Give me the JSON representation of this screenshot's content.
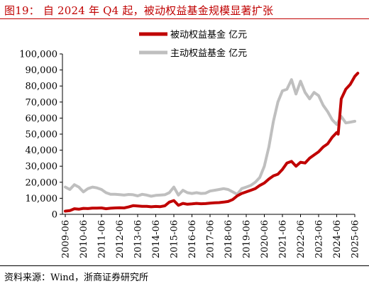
{
  "title": "图19： 自 2024 年 Q4 起，被动权益基金规模显著扩张",
  "source": "资料来源：Wind，浙商证券研究所",
  "colors": {
    "passive": "#c00000",
    "active": "#bfbfbf",
    "title": "#c00000"
  },
  "chart_data": {
    "type": "line",
    "ylim": [
      0,
      100000
    ],
    "y_ticks": [
      "0",
      "10,000",
      "20,000",
      "30,000",
      "40,000",
      "50,000",
      "60,000",
      "70,000",
      "80,000",
      "90,000",
      "100,000"
    ],
    "x_ticks": [
      "2009-06",
      "2010-06",
      "2011-06",
      "2012-06",
      "2013-06",
      "2014-06",
      "2015-06",
      "2016-06",
      "2017-06",
      "2018-06",
      "2019-06",
      "2020-06",
      "2021-06",
      "2022-06",
      "2023-06",
      "2024-06",
      "2025-06"
    ],
    "grid": false,
    "legend_position": "top-right",
    "series": [
      {
        "name": "被动权益基金 亿元",
        "color": "#c00000",
        "points": [
          [
            "2009-06",
            2000
          ],
          [
            "2009-09",
            2300
          ],
          [
            "2009-12",
            3500
          ],
          [
            "2010-03",
            3200
          ],
          [
            "2010-06",
            3700
          ],
          [
            "2010-09",
            3600
          ],
          [
            "2010-12",
            3900
          ],
          [
            "2011-03",
            3900
          ],
          [
            "2011-06",
            4000
          ],
          [
            "2011-09",
            3500
          ],
          [
            "2011-12",
            3800
          ],
          [
            "2012-03",
            4000
          ],
          [
            "2012-06",
            4100
          ],
          [
            "2012-09",
            4000
          ],
          [
            "2012-12",
            4600
          ],
          [
            "2013-03",
            5400
          ],
          [
            "2013-06",
            5200
          ],
          [
            "2013-09",
            5000
          ],
          [
            "2013-12",
            5000
          ],
          [
            "2014-03",
            4700
          ],
          [
            "2014-06",
            4900
          ],
          [
            "2014-09",
            4800
          ],
          [
            "2014-12",
            5300
          ],
          [
            "2015-03",
            7600
          ],
          [
            "2015-06",
            8600
          ],
          [
            "2015-09",
            5600
          ],
          [
            "2015-12",
            6800
          ],
          [
            "2016-03",
            6300
          ],
          [
            "2016-06",
            6500
          ],
          [
            "2016-09",
            6800
          ],
          [
            "2016-12",
            6600
          ],
          [
            "2017-03",
            6700
          ],
          [
            "2017-06",
            7000
          ],
          [
            "2017-09",
            7200
          ],
          [
            "2017-12",
            7300
          ],
          [
            "2018-03",
            7600
          ],
          [
            "2018-06",
            8000
          ],
          [
            "2018-09",
            9200
          ],
          [
            "2018-12",
            11500
          ],
          [
            "2019-03",
            13000
          ],
          [
            "2019-06",
            14000
          ],
          [
            "2019-09",
            15000
          ],
          [
            "2019-12",
            16000
          ],
          [
            "2020-03",
            18000
          ],
          [
            "2020-06",
            19500
          ],
          [
            "2020-09",
            22000
          ],
          [
            "2020-12",
            24000
          ],
          [
            "2021-03",
            25000
          ],
          [
            "2021-06",
            28000
          ],
          [
            "2021-09",
            32000
          ],
          [
            "2021-12",
            33000
          ],
          [
            "2022-03",
            30000
          ],
          [
            "2022-06",
            32500
          ],
          [
            "2022-09",
            32000
          ],
          [
            "2022-12",
            35000
          ],
          [
            "2023-03",
            37000
          ],
          [
            "2023-06",
            39000
          ],
          [
            "2023-09",
            42000
          ],
          [
            "2023-12",
            44000
          ],
          [
            "2024-03",
            48000
          ],
          [
            "2024-06",
            51000
          ],
          [
            "2024-07",
            50000
          ],
          [
            "2024-09",
            72000
          ],
          [
            "2024-12",
            78000
          ],
          [
            "2025-03",
            81000
          ],
          [
            "2025-06",
            86000
          ],
          [
            "2025-08",
            88000
          ]
        ]
      },
      {
        "name": "主动权益基金 亿元",
        "color": "#bfbfbf",
        "points": [
          [
            "2009-06",
            17000
          ],
          [
            "2009-09",
            15500
          ],
          [
            "2009-12",
            18500
          ],
          [
            "2010-03",
            17000
          ],
          [
            "2010-06",
            14000
          ],
          [
            "2010-09",
            16000
          ],
          [
            "2010-12",
            17000
          ],
          [
            "2011-03",
            16500
          ],
          [
            "2011-06",
            15500
          ],
          [
            "2011-09",
            13500
          ],
          [
            "2011-12",
            12500
          ],
          [
            "2012-03",
            12500
          ],
          [
            "2012-06",
            12300
          ],
          [
            "2012-09",
            12000
          ],
          [
            "2012-12",
            12400
          ],
          [
            "2013-03",
            12200
          ],
          [
            "2013-06",
            11500
          ],
          [
            "2013-09",
            12500
          ],
          [
            "2013-12",
            12000
          ],
          [
            "2014-03",
            11300
          ],
          [
            "2014-06",
            11800
          ],
          [
            "2014-09",
            12000
          ],
          [
            "2014-12",
            12200
          ],
          [
            "2015-03",
            13500
          ],
          [
            "2015-06",
            17000
          ],
          [
            "2015-09",
            12000
          ],
          [
            "2015-12",
            15000
          ],
          [
            "2016-03",
            13500
          ],
          [
            "2016-06",
            13000
          ],
          [
            "2016-09",
            13500
          ],
          [
            "2016-12",
            13000
          ],
          [
            "2017-03",
            13200
          ],
          [
            "2017-06",
            14500
          ],
          [
            "2017-09",
            15000
          ],
          [
            "2017-12",
            15500
          ],
          [
            "2018-03",
            16000
          ],
          [
            "2018-06",
            15500
          ],
          [
            "2018-09",
            14000
          ],
          [
            "2018-12",
            12500
          ],
          [
            "2019-03",
            16000
          ],
          [
            "2019-06",
            17000
          ],
          [
            "2019-09",
            18000
          ],
          [
            "2019-12",
            20000
          ],
          [
            "2020-03",
            23000
          ],
          [
            "2020-06",
            30000
          ],
          [
            "2020-09",
            42000
          ],
          [
            "2020-12",
            58000
          ],
          [
            "2021-03",
            70000
          ],
          [
            "2021-06",
            77000
          ],
          [
            "2021-09",
            78000
          ],
          [
            "2021-12",
            84000
          ],
          [
            "2022-03",
            75000
          ],
          [
            "2022-06",
            83000
          ],
          [
            "2022-09",
            76000
          ],
          [
            "2022-12",
            72000
          ],
          [
            "2023-03",
            76000
          ],
          [
            "2023-06",
            74000
          ],
          [
            "2023-09",
            68000
          ],
          [
            "2023-12",
            64000
          ],
          [
            "2024-03",
            59000
          ],
          [
            "2024-06",
            56000
          ],
          [
            "2024-09",
            61000
          ],
          [
            "2024-12",
            57000
          ],
          [
            "2025-03",
            57500
          ],
          [
            "2025-06",
            58000
          ]
        ]
      }
    ]
  }
}
